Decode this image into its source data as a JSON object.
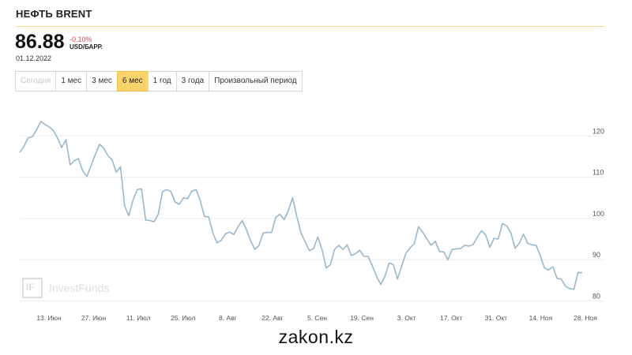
{
  "header": {
    "title": "НЕФТЬ BRENT",
    "price": "86.88",
    "change": "-0.10%",
    "unit": "USD/БАРР.",
    "date": "01.12.2022"
  },
  "tabs": [
    {
      "label": "Сегодня",
      "state": "disabled"
    },
    {
      "label": "1 мес",
      "state": "normal"
    },
    {
      "label": "3 мес",
      "state": "normal"
    },
    {
      "label": "6 мес",
      "state": "active"
    },
    {
      "label": "1 год",
      "state": "normal"
    },
    {
      "label": "3 года",
      "state": "normal"
    },
    {
      "label": "Произвольный период",
      "state": "normal"
    }
  ],
  "watermark": {
    "text": "InvestFunds"
  },
  "footer": {
    "text": "zakon.kz"
  },
  "colors": {
    "line": "#9bb7cc",
    "grid": "#ececec",
    "accent": "#fbd36b",
    "negative": "#d04848"
  },
  "chart_data": {
    "type": "line",
    "title": "",
    "xlabel": "",
    "ylabel": "",
    "ylim": [
      78,
      130
    ],
    "yticks": [
      80,
      90,
      100,
      110,
      120
    ],
    "xticks": [
      "13. Июн",
      "27. Июн",
      "11. Июл",
      "25. Июл",
      "8. Авг",
      "22. Авг",
      "5. Сен",
      "19. Сен",
      "3. Окт",
      "17. Окт",
      "31. Окт",
      "14. Ноя",
      "28. Ноя"
    ],
    "grid": "horizontal",
    "series": [
      {
        "name": "",
        "values": [
          116,
          117.5,
          119.5,
          119.8,
          121.5,
          123.5,
          122.8,
          122.2,
          121.3,
          119.5,
          117.2,
          119.1,
          113,
          114,
          114.5,
          111.5,
          110.2,
          112.8,
          115.5,
          118,
          117,
          115.2,
          114.2,
          111.2,
          112.5,
          103,
          100.7,
          104.5,
          107,
          107.2,
          99.6,
          99.5,
          99.2,
          101,
          106.5,
          107,
          106.5,
          104,
          103.4,
          105,
          104.8,
          106.6,
          107,
          104.3,
          100.5,
          100.4,
          96.5,
          94.1,
          94.7,
          96.3,
          96.7,
          96.1,
          98,
          99.5,
          97.3,
          94.6,
          92.5,
          93.5,
          96.5,
          96.6,
          96.6,
          100.3,
          101,
          99.7,
          102,
          105,
          100.5,
          96.5,
          94.3,
          92.2,
          92.7,
          95.5,
          92.5,
          88,
          88.8,
          92.5,
          93.5,
          92.5,
          93.6,
          91,
          91.5,
          92.3,
          90.8,
          90.8,
          88.5,
          86,
          84,
          86,
          89.2,
          88.8,
          85.3,
          88.5,
          91.5,
          92.9,
          93.9,
          98,
          96.7,
          95,
          93.5,
          94.5,
          92,
          91.9,
          90,
          92.5,
          92.6,
          92.7,
          93.5,
          93.3,
          93.7,
          95.5,
          97,
          96,
          93,
          95.2,
          95,
          98.8,
          98.2,
          96.5,
          92.8,
          94,
          96.2,
          94,
          93.6,
          93.5,
          91,
          88,
          87.5,
          88.3,
          85.5,
          85.3,
          83.6,
          83,
          82.8,
          86.9,
          86.88
        ]
      }
    ]
  }
}
